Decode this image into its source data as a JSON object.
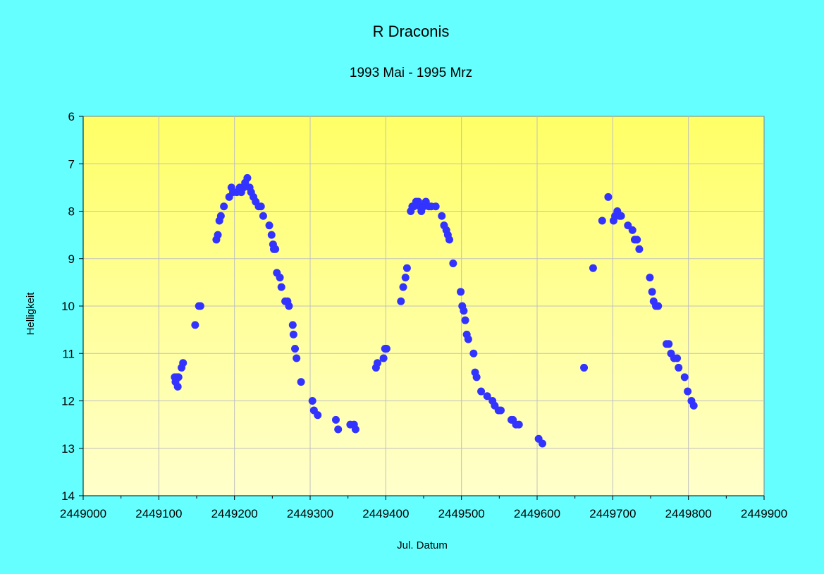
{
  "chart_data": {
    "type": "scatter",
    "title": "R Draconis",
    "subtitle": "1993 Mai - 1995 Mrz",
    "xlabel": "Jul. Datum",
    "ylabel": "Helligkeit",
    "xlim": [
      2449000,
      2449900
    ],
    "ylim": [
      6,
      14
    ],
    "y_inverted": true,
    "x_ticks": [
      "2449000",
      "2449100",
      "2449200",
      "2449300",
      "2449400",
      "2449500",
      "2449600",
      "2449700",
      "2449800",
      "2449900"
    ],
    "y_ticks": [
      "6",
      "7",
      "8",
      "9",
      "10",
      "11",
      "12",
      "13",
      "14"
    ],
    "grid": true,
    "legend": "none",
    "colors": {
      "background": "#66ffff",
      "plot_top": "#ffff66",
      "plot_bottom": "#ffffcc",
      "marker": "#3333ff",
      "grid": "#c0c0c0"
    },
    "series": [
      {
        "points": [
          [
            2449121,
            11.5
          ],
          [
            2449122,
            11.6
          ],
          [
            2449124,
            11.5
          ],
          [
            2449125,
            11.7
          ],
          [
            2449126,
            11.5
          ],
          [
            2449130,
            11.3
          ],
          [
            2449132,
            11.2
          ],
          [
            2449148,
            10.4
          ],
          [
            2449153,
            10.0
          ],
          [
            2449155,
            10.0
          ],
          [
            2449176,
            8.6
          ],
          [
            2449178,
            8.5
          ],
          [
            2449180,
            8.2
          ],
          [
            2449182,
            8.1
          ],
          [
            2449186,
            7.9
          ],
          [
            2449193,
            7.7
          ],
          [
            2449196,
            7.5
          ],
          [
            2449198,
            7.6
          ],
          [
            2449203,
            7.6
          ],
          [
            2449207,
            7.5
          ],
          [
            2449209,
            7.6
          ],
          [
            2449212,
            7.5
          ],
          [
            2449214,
            7.4
          ],
          [
            2449217,
            7.3
          ],
          [
            2449220,
            7.5
          ],
          [
            2449222,
            7.6
          ],
          [
            2449225,
            7.7
          ],
          [
            2449228,
            7.8
          ],
          [
            2449232,
            7.9
          ],
          [
            2449235,
            7.9
          ],
          [
            2449238,
            8.1
          ],
          [
            2449246,
            8.3
          ],
          [
            2449249,
            8.5
          ],
          [
            2449251,
            8.7
          ],
          [
            2449252,
            8.8
          ],
          [
            2449254,
            8.8
          ],
          [
            2449256,
            9.3
          ],
          [
            2449260,
            9.4
          ],
          [
            2449262,
            9.6
          ],
          [
            2449267,
            9.9
          ],
          [
            2449270,
            9.9
          ],
          [
            2449272,
            10.0
          ],
          [
            2449277,
            10.4
          ],
          [
            2449278,
            10.6
          ],
          [
            2449280,
            10.9
          ],
          [
            2449282,
            11.1
          ],
          [
            2449288,
            11.6
          ],
          [
            2449303,
            12.0
          ],
          [
            2449305,
            12.2
          ],
          [
            2449310,
            12.3
          ],
          [
            2449334,
            12.4
          ],
          [
            2449337,
            12.6
          ],
          [
            2449353,
            12.5
          ],
          [
            2449358,
            12.5
          ],
          [
            2449360,
            12.6
          ],
          [
            2449387,
            11.3
          ],
          [
            2449389,
            11.2
          ],
          [
            2449397,
            11.1
          ],
          [
            2449399,
            10.9
          ],
          [
            2449401,
            10.9
          ],
          [
            2449420,
            9.9
          ],
          [
            2449423,
            9.6
          ],
          [
            2449426,
            9.4
          ],
          [
            2449428,
            9.2
          ],
          [
            2449433,
            8.0
          ],
          [
            2449435,
            7.9
          ],
          [
            2449437,
            7.9
          ],
          [
            2449440,
            7.8
          ],
          [
            2449443,
            7.8
          ],
          [
            2449445,
            7.9
          ],
          [
            2449447,
            8.0
          ],
          [
            2449450,
            7.9
          ],
          [
            2449453,
            7.8
          ],
          [
            2449457,
            7.9
          ],
          [
            2449460,
            7.9
          ],
          [
            2449466,
            7.9
          ],
          [
            2449474,
            8.1
          ],
          [
            2449477,
            8.3
          ],
          [
            2449480,
            8.4
          ],
          [
            2449482,
            8.5
          ],
          [
            2449484,
            8.6
          ],
          [
            2449489,
            9.1
          ],
          [
            2449499,
            9.7
          ],
          [
            2449501,
            10.0
          ],
          [
            2449503,
            10.1
          ],
          [
            2449505,
            10.3
          ],
          [
            2449507,
            10.6
          ],
          [
            2449509,
            10.7
          ],
          [
            2449516,
            11.0
          ],
          [
            2449518,
            11.4
          ],
          [
            2449520,
            11.5
          ],
          [
            2449526,
            11.8
          ],
          [
            2449534,
            11.9
          ],
          [
            2449541,
            12.0
          ],
          [
            2449544,
            12.1
          ],
          [
            2449549,
            12.2
          ],
          [
            2449552,
            12.2
          ],
          [
            2449566,
            12.4
          ],
          [
            2449568,
            12.4
          ],
          [
            2449572,
            12.5
          ],
          [
            2449576,
            12.5
          ],
          [
            2449602,
            12.8
          ],
          [
            2449607,
            12.9
          ],
          [
            2449662,
            11.3
          ],
          [
            2449674,
            9.2
          ],
          [
            2449686,
            8.2
          ],
          [
            2449694,
            7.7
          ],
          [
            2449701,
            8.2
          ],
          [
            2449703,
            8.1
          ],
          [
            2449706,
            8.0
          ],
          [
            2449709,
            8.1
          ],
          [
            2449711,
            8.1
          ],
          [
            2449720,
            8.3
          ],
          [
            2449726,
            8.4
          ],
          [
            2449729,
            8.6
          ],
          [
            2449732,
            8.6
          ],
          [
            2449735,
            8.8
          ],
          [
            2449749,
            9.4
          ],
          [
            2449752,
            9.7
          ],
          [
            2449754,
            9.9
          ],
          [
            2449757,
            10.0
          ],
          [
            2449760,
            10.0
          ],
          [
            2449771,
            10.8
          ],
          [
            2449774,
            10.8
          ],
          [
            2449777,
            11.0
          ],
          [
            2449781,
            11.1
          ],
          [
            2449785,
            11.1
          ],
          [
            2449787,
            11.3
          ],
          [
            2449795,
            11.5
          ],
          [
            2449799,
            11.8
          ],
          [
            2449804,
            12.0
          ],
          [
            2449807,
            12.1
          ]
        ]
      }
    ]
  }
}
